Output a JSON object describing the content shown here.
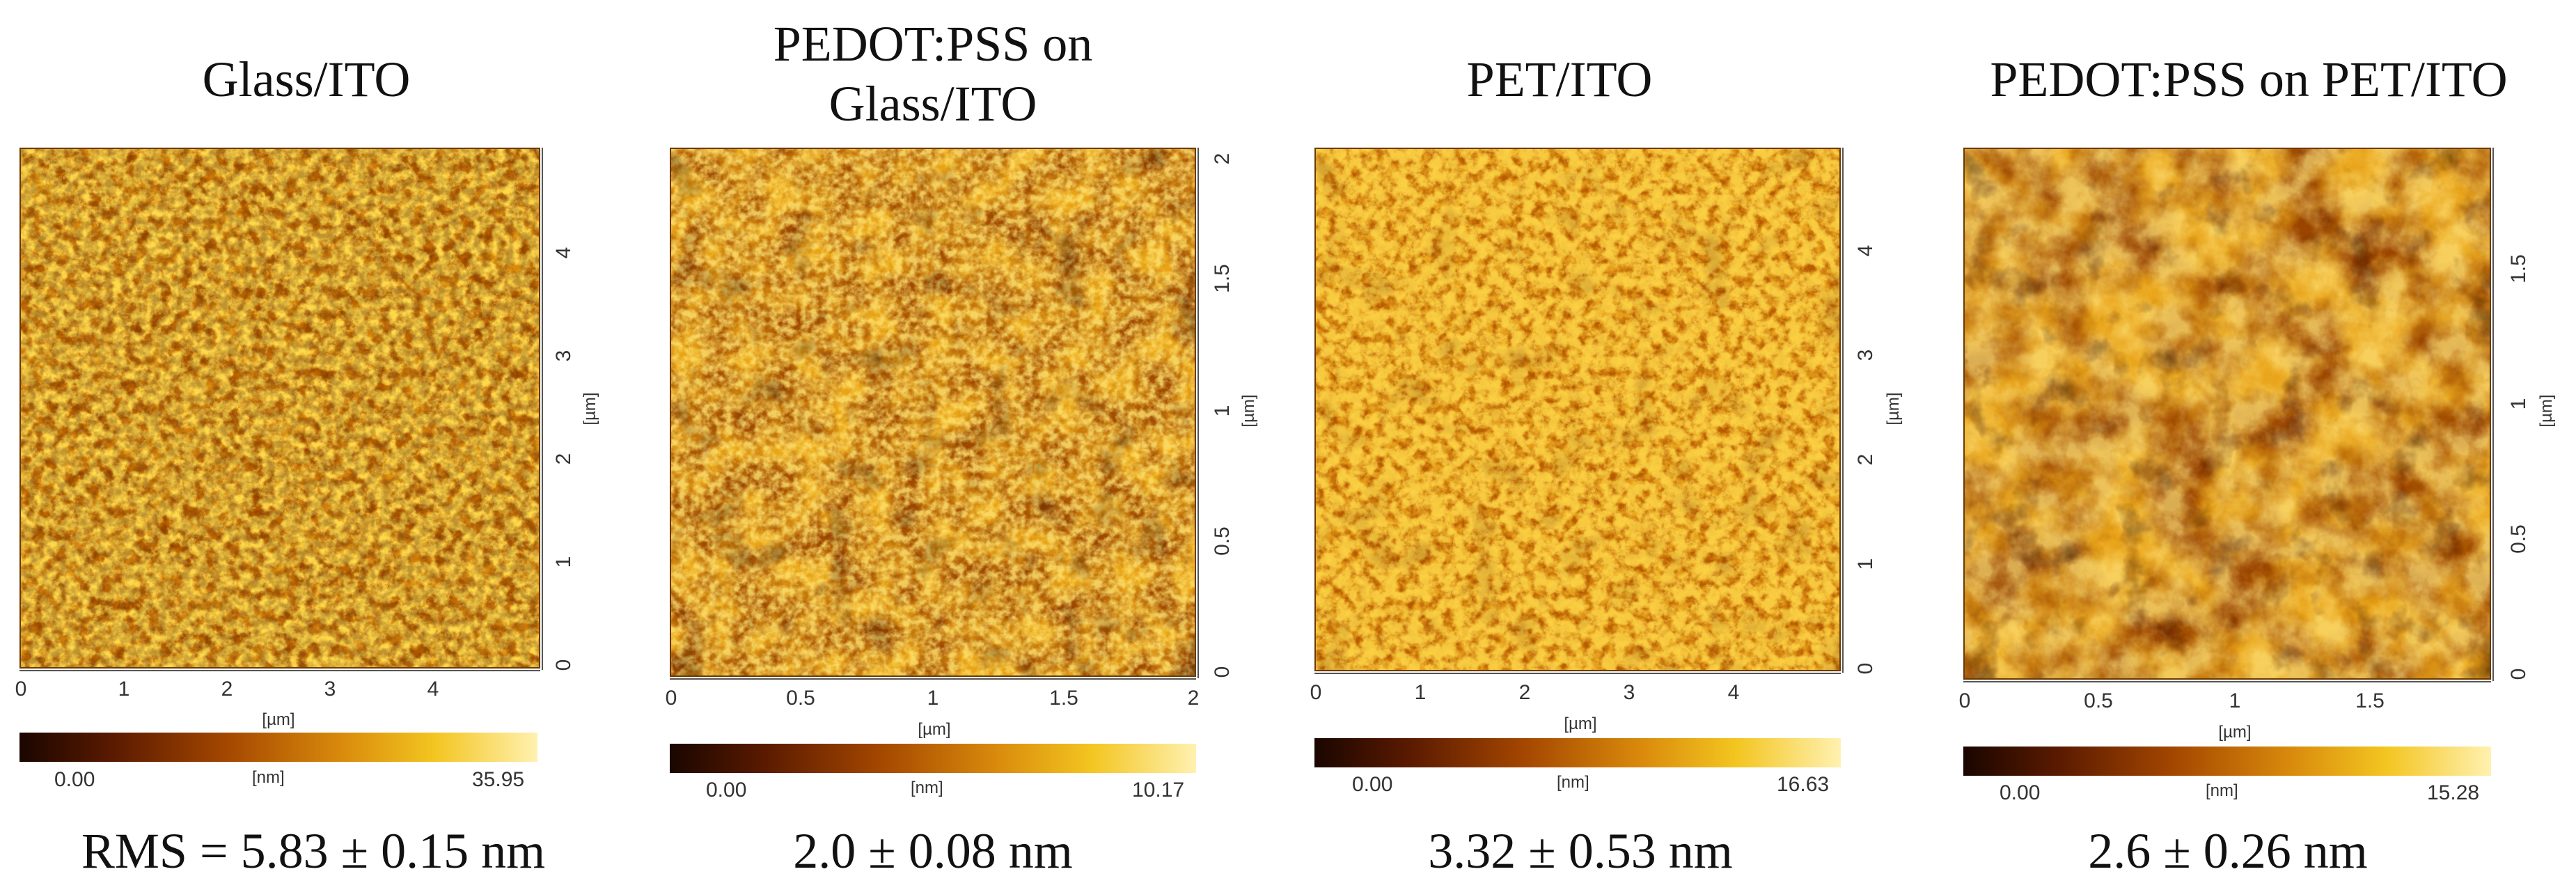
{
  "panels": [
    {
      "title": "Glass/ITO",
      "x_ticks": [
        "0",
        "1",
        "2",
        "3",
        "4"
      ],
      "y_ticks": [
        "0",
        "1",
        "2",
        "3",
        "4"
      ],
      "x_unit": "[µm]",
      "y_unit": "[µm]",
      "colorbar": {
        "min": "0.00",
        "unit": "[nm]",
        "max": "35.95"
      },
      "roughness": "RMS = 5.83 ± 0.15 nm",
      "texture": "granular"
    },
    {
      "title": "PEDOT:PSS on Glass/ITO",
      "x_ticks": [
        "0",
        "0.5",
        "1",
        "1.5",
        "2"
      ],
      "y_ticks": [
        "0",
        "0.5",
        "1",
        "1.5",
        "2"
      ],
      "x_unit": "[µm]",
      "y_unit": "[µm]",
      "colorbar": {
        "min": "0.00",
        "unit": "[nm]",
        "max": "10.17"
      },
      "roughness": "2.0 ± 0.08 nm",
      "texture": "cloudy-fine"
    },
    {
      "title": "PET/ITO",
      "x_ticks": [
        "0",
        "1",
        "2",
        "3",
        "4"
      ],
      "y_ticks": [
        "0",
        "1",
        "2",
        "3",
        "4"
      ],
      "x_unit": "[µm]",
      "y_unit": "[µm]",
      "colorbar": {
        "min": "0.00",
        "unit": "[nm]",
        "max": "16.63"
      },
      "roughness": "3.32 ± 0.53 nm",
      "texture": "speckle"
    },
    {
      "title": "PEDOT:PSS on PET/ITO",
      "x_ticks": [
        "0",
        "0.5",
        "1",
        "1.5"
      ],
      "y_ticks": [
        "0",
        "0.5",
        "1",
        "1.5"
      ],
      "x_unit": "[µm]",
      "y_unit": "[µm]",
      "colorbar": {
        "min": "0.00",
        "unit": "[nm]",
        "max": "15.28"
      },
      "roughness": "2.6 ± 0.26 nm",
      "texture": "cloudy-coarse"
    }
  ]
}
